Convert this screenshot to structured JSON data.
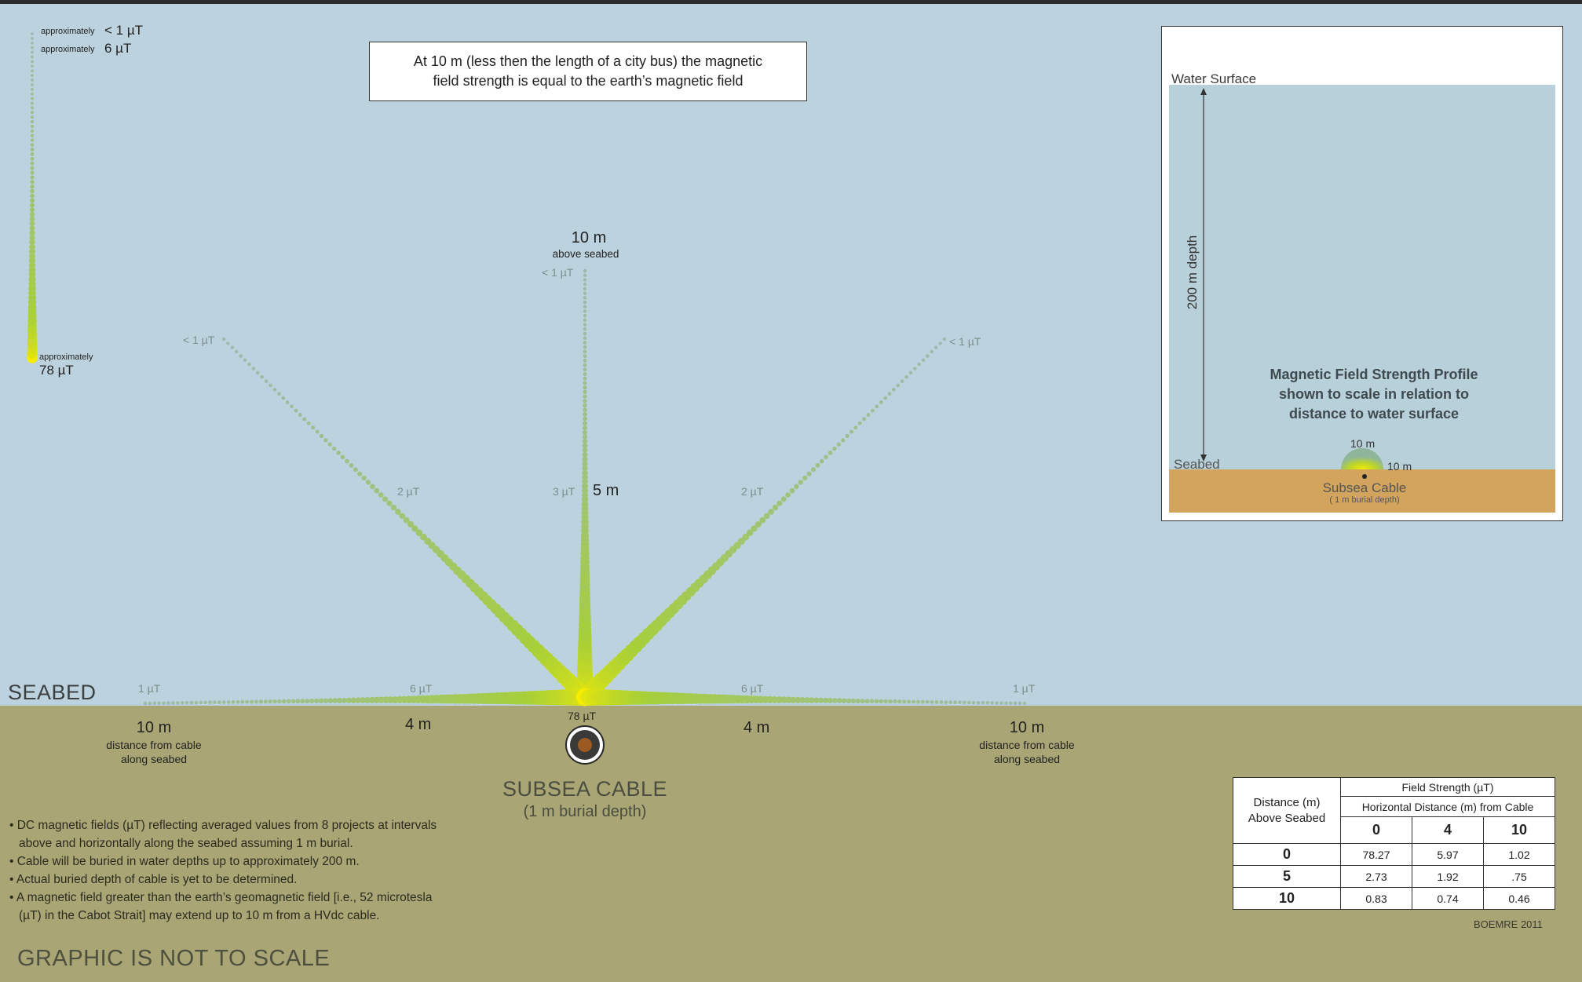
{
  "callout": {
    "line1": "At 10 m (less then the length of a city bus) the magnetic",
    "line2": "field strength is equal to the earth’s magnetic field"
  },
  "legend": {
    "top_prefix": "approximately",
    "top_value": "< 1 µT",
    "mid_prefix": "approximately",
    "mid_value": "6 µT",
    "bottom_prefix": "approximately",
    "bottom_value": "78 µT"
  },
  "vertical": {
    "top_distance": "10 m",
    "top_caption": "above seabed",
    "top_value": "< 1 µT",
    "mid_value": "3 µT",
    "mid_distance": "5 m"
  },
  "diagonals": {
    "left_top": "< 1 µT",
    "left_mid": "2 µT",
    "right_top": "< 1 µT",
    "right_mid": "2 µT"
  },
  "seabed_line": {
    "label": "SEABED",
    "far_left": "1 µT",
    "near_left": "6 µT",
    "near_right": "6 µT",
    "far_right": "1 µT",
    "center": "78 µT"
  },
  "distances": {
    "left_far": "10 m",
    "left_far_caption_1": "distance from cable",
    "left_far_caption_2": "along seabed",
    "left_near": "4 m",
    "right_near": "4 m",
    "right_far": "10 m",
    "right_far_caption_1": "distance from cable",
    "right_far_caption_2": "along seabed"
  },
  "cable": {
    "title": "SUBSEA CABLE",
    "subtitle": "(1 m burial depth)"
  },
  "notes": [
    "• DC magnetic fields (µT) reflecting averaged values from 8 projects at intervals above and horizontally along the seabed assuming 1 m burial.",
    "• Cable will be buried in water depths up to approximately 200 m.",
    "• Actual buried depth of cable is yet to be determined.",
    "• A magnetic field greater than the earth’s geomagnetic field [i.e., 52 microtesla (µT) in the Cabot Strait] may extend up to 10 m from a HVdc cable."
  ],
  "not_to_scale": "GRAPHIC IS NOT TO SCALE",
  "inset": {
    "water_surface": "Water Surface",
    "depth": "200 m depth",
    "title_1": "Magnetic Field Strength Profile",
    "title_2": "shown to scale in relation to",
    "title_3": "distance to water surface",
    "ten_top": "10 m",
    "ten_side": "10 m",
    "seabed": "Seabed",
    "cable": "Subsea Cable",
    "cable_sub": "( 1 m burial depth)"
  },
  "table": {
    "row_header_1": "Distance (m)",
    "row_header_2": "Above Seabed",
    "group_header": "Field Strength (µT)",
    "sub_header": "Horizontal Distance (m) from Cable",
    "columns": [
      "0",
      "4",
      "10"
    ],
    "rows": [
      {
        "label": "0",
        "values": [
          "78.27",
          "5.97",
          "1.02"
        ]
      },
      {
        "label": "5",
        "values": [
          "2.73",
          "1.92",
          ".75"
        ]
      },
      {
        "label": "10",
        "values": [
          "0.83",
          "0.74",
          "0.46"
        ]
      }
    ]
  },
  "credit": "BOEMRE 2011",
  "colors": {
    "water": "#bcd3df",
    "ground": "#a9a574",
    "field_strong": "#f5ec00",
    "field_mid": "#a6cf3a",
    "field_weak": "#9cb9ad",
    "inset_sand": "#d2a45d"
  }
}
